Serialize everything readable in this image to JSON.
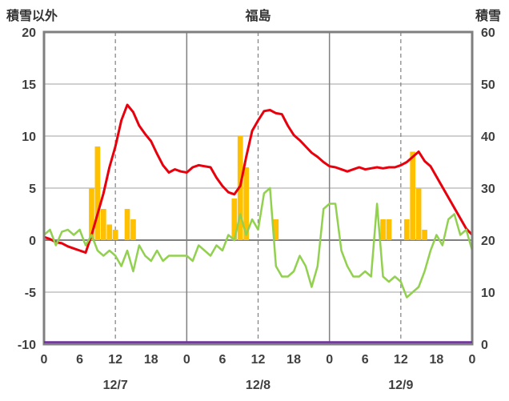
{
  "header": {
    "left_axis_title": "積雪以外",
    "chart_title": "福島",
    "right_axis_title": "積雪"
  },
  "colors": {
    "red_line": "#e8000d",
    "green_line": "#92d050",
    "orange_bars": "#ffc000",
    "purple_line": "#7030a0",
    "border": "#7f7f7f",
    "grid": "#b3b3b3",
    "zero_line": "#808080",
    "tick_text": "#404040"
  },
  "chart_data": {
    "type": "line+bar",
    "title": "福島",
    "left_axis": {
      "label": "積雪以外",
      "min": -10,
      "max": 20,
      "ticks": [
        20,
        15,
        10,
        5,
        0,
        -5,
        -10
      ]
    },
    "right_axis": {
      "label": "積雪",
      "min": 0,
      "max": 60,
      "ticks": [
        60,
        50,
        40,
        30,
        20,
        10,
        0
      ]
    },
    "x_axis": {
      "hours_total": 72,
      "tick_interval": 6,
      "tick_labels": [
        "0",
        "6",
        "12",
        "18",
        "0",
        "6",
        "12",
        "18",
        "0",
        "6",
        "12",
        "18",
        "0"
      ],
      "day_labels": [
        "12/7",
        "12/8",
        "12/9"
      ],
      "day_label_hours": [
        12,
        36,
        60
      ],
      "dashed_grid_hours": [
        12,
        36,
        60
      ],
      "solid_grid_hours": [
        24,
        48
      ]
    },
    "series": [
      {
        "name": "red-line",
        "axis": "left",
        "color": "#e8000d",
        "width": 3,
        "values": [
          0.3,
          0.1,
          -0.2,
          -0.3,
          -0.6,
          -0.8,
          -1.0,
          -1.2,
          0.5,
          2.5,
          4.5,
          7.0,
          9.0,
          11.5,
          13.0,
          12.3,
          11.0,
          10.2,
          9.5,
          8.3,
          7.2,
          6.5,
          6.8,
          6.6,
          6.5,
          7.0,
          7.2,
          7.1,
          7.0,
          6.0,
          5.2,
          4.6,
          4.4,
          5.2,
          8.0,
          10.5,
          11.5,
          12.4,
          12.5,
          12.2,
          12.1,
          11.0,
          10.1,
          9.6,
          9.0,
          8.4,
          8.0,
          7.5,
          7.1,
          7.0,
          6.8,
          6.6,
          6.8,
          7.0,
          6.8,
          6.9,
          7.0,
          6.9,
          7.0,
          7.0,
          7.2,
          7.5,
          8.0,
          8.5,
          7.6,
          7.1,
          6.1,
          5.1,
          4.1,
          3.1,
          2.1,
          1.1,
          0.5
        ]
      },
      {
        "name": "green-line",
        "axis": "left",
        "color": "#92d050",
        "width": 2.5,
        "values": [
          0.5,
          1.0,
          -0.5,
          0.8,
          1.0,
          0.5,
          1.0,
          -0.5,
          0.5,
          -1.0,
          -1.5,
          -1.0,
          -1.5,
          -2.5,
          -1.0,
          -3.0,
          -0.5,
          -1.5,
          -2.0,
          -1.0,
          -2.0,
          -1.5,
          -1.5,
          -1.5,
          -1.5,
          -2.0,
          -0.5,
          -1.0,
          -1.5,
          -0.5,
          -1.0,
          0.5,
          0.0,
          2.5,
          0.5,
          2.0,
          1.0,
          4.5,
          5.0,
          -2.5,
          -3.5,
          -3.5,
          -3.0,
          -1.5,
          -2.5,
          -4.5,
          -2.5,
          3.0,
          3.5,
          3.5,
          -1.0,
          -2.5,
          -3.5,
          -3.5,
          -3.0,
          -3.5,
          3.5,
          -3.5,
          -4.0,
          -3.5,
          -4.0,
          -5.5,
          -5.0,
          -4.5,
          -3.0,
          -1.0,
          0.5,
          -0.5,
          2.0,
          2.5,
          0.5,
          1.0,
          -1.0
        ]
      },
      {
        "name": "purple-line",
        "axis": "right",
        "color": "#7030a0",
        "width": 2.5,
        "constant_value": 0
      }
    ],
    "bars": {
      "name": "orange-bars",
      "axis": "left",
      "color": "#ffc000",
      "points": [
        [
          8,
          5
        ],
        [
          9,
          9
        ],
        [
          10,
          3
        ],
        [
          11,
          1.5
        ],
        [
          12,
          1
        ],
        [
          14,
          3
        ],
        [
          15,
          2
        ],
        [
          32,
          4
        ],
        [
          33,
          10
        ],
        [
          34,
          7
        ],
        [
          39,
          2
        ],
        [
          57,
          2
        ],
        [
          58,
          2
        ],
        [
          61,
          2
        ],
        [
          62,
          8.5
        ],
        [
          63,
          5
        ],
        [
          64,
          1
        ]
      ]
    }
  }
}
